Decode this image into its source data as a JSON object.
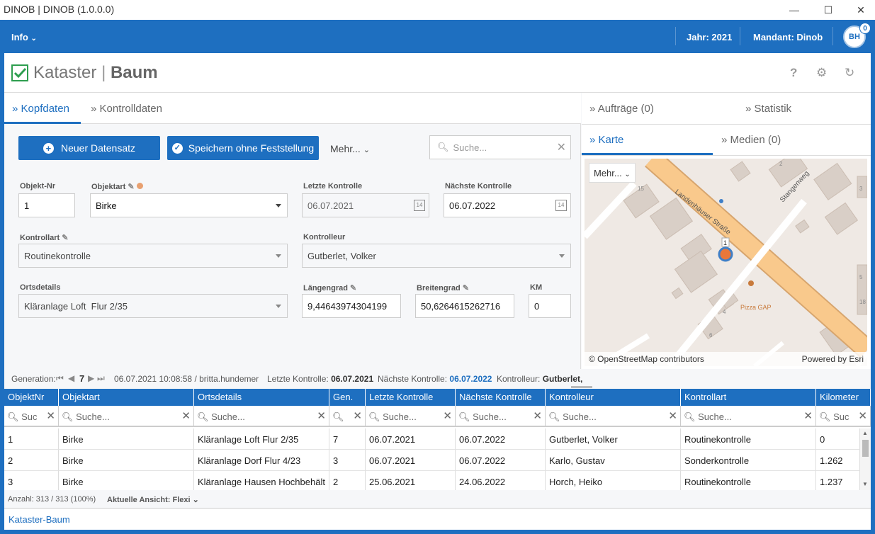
{
  "window": {
    "title": "DINOB | DINOB (1.0.0.0)",
    "min": "—",
    "max": "☐",
    "close": "✕"
  },
  "appbar": {
    "info": "Info",
    "year": "Jahr: 2021",
    "client": "Mandant: Dinob",
    "avatar": "BH",
    "badge": "0"
  },
  "page": {
    "title_a": "Kataster",
    "title_sep": "|",
    "title_b": "Baum",
    "help": "?",
    "settings": "⚙",
    "refresh": "↻"
  },
  "tabs_left": [
    {
      "label": "Kopfdaten"
    },
    {
      "label": "Kontrolldaten"
    }
  ],
  "tabs_right": [
    {
      "label": "Aufträge (0)"
    },
    {
      "label": "Statistik"
    },
    {
      "label": "Karte"
    },
    {
      "label": "Medien (0)"
    }
  ],
  "actions": {
    "new": "Neuer Datensatz",
    "save": "Speichern ohne Feststellung",
    "more": "Mehr...",
    "search_placeholder": "Suche..."
  },
  "form": {
    "objektnr_label": "Objekt-Nr",
    "objektnr": "1",
    "objektart_label": "Objektart",
    "objektart": "Birke",
    "letzte_label": "Letzte Kontrolle",
    "letzte": "06.07.2021",
    "naechste_label": "Nächste Kontrolle",
    "naechste": "06.07.2022",
    "kontrollart_label": "Kontrollart",
    "kontrollart": "Routinekontrolle",
    "kontrolleur_label": "Kontrolleur",
    "kontrolleur": "Gutberlet, Volker",
    "ort_label": "Ortsdetails",
    "ort": "Kläranlage Loft  Flur 2/35",
    "laengengrad_label": "Längengrad",
    "laengengrad": "9,44643974304199",
    "breitengrad_label": "Breitengrad",
    "breitengrad": "50,6264615262716",
    "km_label": "KM",
    "km": "0",
    "cal_day": "14"
  },
  "map": {
    "more": "Mehr...",
    "street1": "Landenhäuser Straße",
    "street2": "Stangenweg",
    "poi": "Pizza GAP",
    "marker": "1",
    "n15": "15",
    "n2": "2",
    "n3": "3",
    "n4": "4",
    "n6": "6",
    "n18": "18",
    "n5": "5",
    "attribution": "© OpenStreetMap contributors",
    "esri": "Powered by Esri"
  },
  "status": {
    "gen_label": "Generation:",
    "gen": "7",
    "stamp": "06.07.2021 10:08:58 / britta.hundemer",
    "letzte_label": "Letzte Kontrolle:",
    "letzte": "06.07.2021",
    "naechste_label": "Nächste Kontrolle:",
    "naechste": "06.07.2022",
    "kontrolleur_label": "Kontrolleur:",
    "kontrolleur": "Gutberlet,"
  },
  "grid": {
    "columns": [
      "ObjektNr",
      "Objektart",
      "Ortsdetails",
      "Gen.",
      "Letzte Kontrolle",
      "Nächste Kontrolle",
      "Kontrolleur",
      "Kontrollart",
      "Kilometer"
    ],
    "filter": [
      "Suc",
      "Suche...",
      "Suche...",
      "",
      "Suche...",
      "Suche...",
      "Suche...",
      "Suche...",
      "Suc"
    ],
    "rows": [
      [
        "1",
        "Birke",
        "Kläranlage Loft  Flur 2/35",
        "7",
        "06.07.2021",
        "06.07.2022",
        "Gutberlet, Volker",
        "Routinekontrolle",
        "0"
      ],
      [
        "2",
        "Birke",
        "Kläranlage Dorf  Flur 4/23",
        "3",
        "06.07.2021",
        "06.07.2022",
        "Karlo, Gustav",
        "Sonderkontrolle",
        "1.262"
      ],
      [
        "3",
        "Birke",
        "Kläranlage Hausen  Hochbehält",
        "2",
        "25.06.2021",
        "24.06.2022",
        "Horch, Heiko",
        "Routinekontrolle",
        "1.237"
      ]
    ]
  },
  "footer": {
    "count": "Anzahl: 313 / 313 (100%)",
    "view": "Aktuelle Ansicht: Flexi"
  },
  "bottom": {
    "tab": "Kataster-Baum"
  },
  "colors": {
    "accent": "#1e6fc0",
    "check": "#2e9e4f",
    "marker": "#e8773a",
    "road": "#f9c98c"
  }
}
